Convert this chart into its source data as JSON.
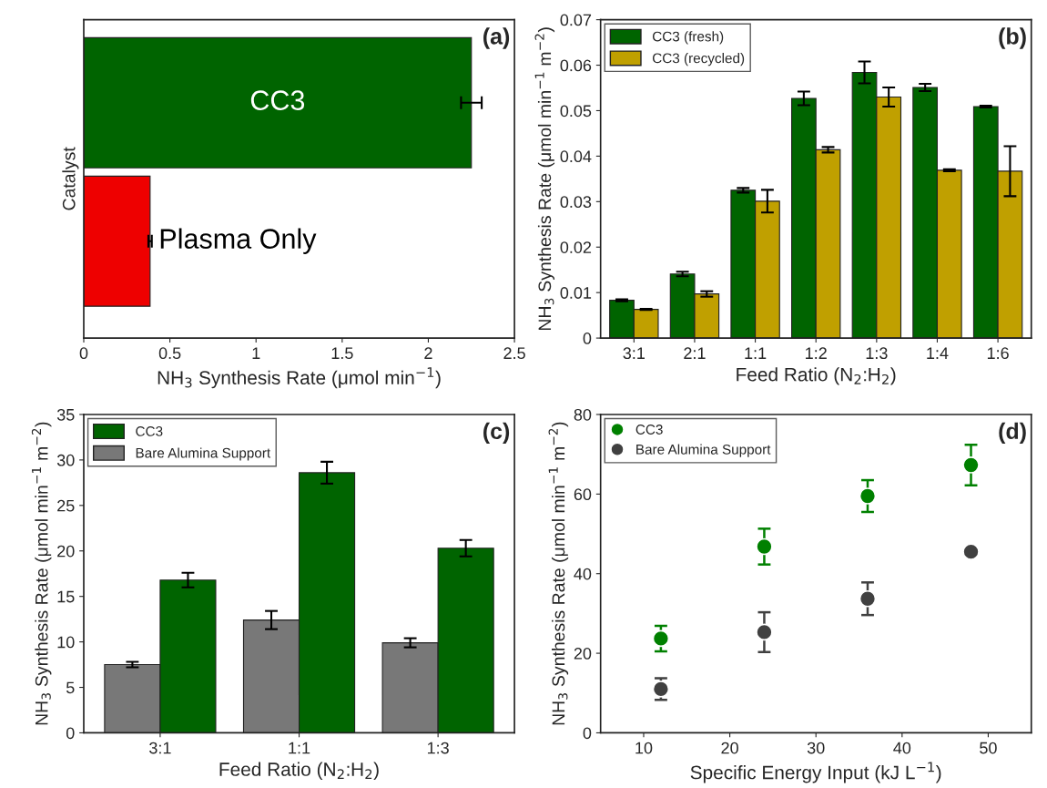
{
  "chart_data": [
    {
      "type": "bar",
      "orientation": "horizontal",
      "categories": [
        "CC3",
        "Plasma Only"
      ],
      "values": [
        2.25,
        0.385
      ],
      "errors": [
        0.06,
        0.01
      ],
      "colors": [
        "#006400",
        "#ee0000"
      ],
      "xlabel": "NH$_{3}$ Synthesis Rate (μmol min$^{−1}$)",
      "ylabel": "Catalyst",
      "xlim": [
        0,
        2.5
      ],
      "xticks": [
        0,
        0.5,
        1,
        1.5,
        2,
        2.5
      ],
      "tick_labels": "x",
      "annotations": [
        "(a)"
      ],
      "grid": false,
      "legend": false
    },
    {
      "type": "bar",
      "categories": [
        "3:1",
        "2:1",
        "1:1",
        "1:2",
        "1:3",
        "1:4",
        "1:6"
      ],
      "series": [
        {
          "name": "CC3 (fresh)",
          "color": "#006400",
          "values": [
            0.0083,
            0.0141,
            0.0325,
            0.0527,
            0.0584,
            0.0551,
            0.0509
          ],
          "errors": [
            0.0002,
            0.0005,
            0.0005,
            0.0015,
            0.0024,
            0.0008,
            0.0002
          ]
        },
        {
          "name": "CC3 (recycled)",
          "color": "#c0a000",
          "values": [
            0.0063,
            0.0097,
            0.0301,
            0.0414,
            0.053,
            0.0369,
            0.0367
          ],
          "errors": [
            0.0001,
            0.0006,
            0.0025,
            0.0006,
            0.0021,
            0.0002,
            0.0055
          ]
        }
      ],
      "xlabel": "Feed Ratio (N$_{2}$:H$_{2}$)",
      "ylabel": "NH$_{3}$ Synthesis Rate (μmol min$^{−1}$ m$^{−2}$)",
      "ylim": [
        0,
        0.07
      ],
      "yticks": [
        0,
        0.01,
        0.02,
        0.03,
        0.04,
        0.05,
        0.06,
        0.07
      ],
      "annotations": [
        "(b)"
      ],
      "grid": false,
      "legend": "top left"
    },
    {
      "type": "bar",
      "categories": [
        "3:1",
        "1:1",
        "1:3"
      ],
      "series": [
        {
          "name": "Bare Alumina Support",
          "color": "#787878",
          "values": [
            7.5,
            12.4,
            9.9
          ],
          "errors": [
            0.3,
            1.0,
            0.5
          ]
        },
        {
          "name": "CC3",
          "color": "#006400",
          "values": [
            16.8,
            28.6,
            20.3
          ],
          "errors": [
            0.8,
            1.2,
            0.9
          ]
        }
      ],
      "xlabel": "Feed Ratio (N$_{2}$:H$_{2}$)",
      "ylabel": "NH$_{3}$ Synthesis Rate (μmol min$^{−1}$ m$^{−2}$)",
      "ylim": [
        0,
        35
      ],
      "yticks": [
        0,
        5,
        10,
        15,
        20,
        25,
        30,
        35
      ],
      "annotations": [
        "(c)"
      ],
      "grid": false,
      "legend": "top left"
    },
    {
      "type": "scatter",
      "x": [
        12,
        24,
        36,
        48
      ],
      "series": [
        {
          "name": "CC3",
          "color": "#008000",
          "values": [
            23.7,
            46.8,
            59.5,
            67.3
          ],
          "errors": [
            3.2,
            4.5,
            4.0,
            5.1
          ]
        },
        {
          "name": "Bare Alumina Support",
          "color": "#404040",
          "values": [
            11.0,
            25.3,
            33.7,
            45.5
          ],
          "errors": [
            2.7,
            5.0,
            4.1,
            null
          ]
        }
      ],
      "xlabel": "Specific Energy Input (kJ L$^{−1}$)",
      "ylabel": "NH$_{3}$ Synthesis Rate (μmol min$^{−1}$ m$^{−2}$)",
      "xlim": [
        5,
        55
      ],
      "xticks": [
        10,
        20,
        30,
        40,
        50
      ],
      "ylim": [
        0,
        80
      ],
      "yticks": [
        0,
        20,
        40,
        60,
        80
      ],
      "marker": "circle",
      "annotations": [
        "(d)"
      ],
      "grid": false,
      "legend": "top left"
    }
  ]
}
